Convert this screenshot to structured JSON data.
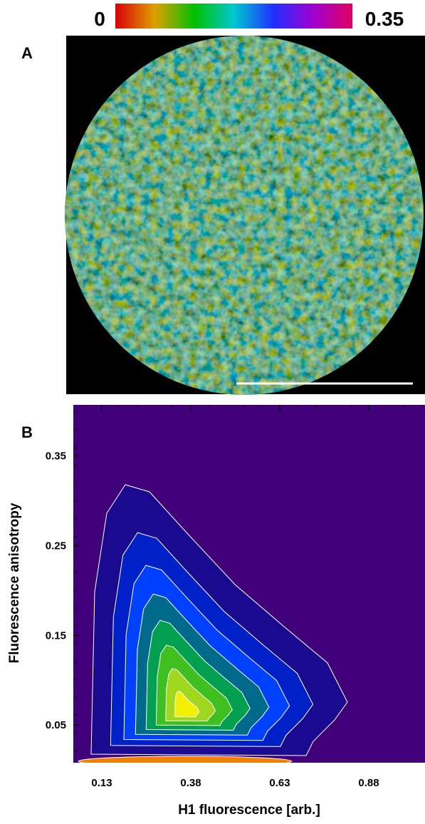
{
  "chart_data": [
    {
      "type": "image",
      "panel_label": "A",
      "colorbar_ticks": [
        0,
        0.35
      ],
      "colorbar_colors": [
        "#d8000a",
        "#e0a000",
        "#00c000",
        "#00c8d0",
        "#2030ff",
        "#a000d0",
        "#e00060"
      ]
    },
    {
      "type": "contour",
      "panel_label": "B",
      "xlabel": "H1 fluorescence [arb.]",
      "ylabel": "Fluorescence anisotropy",
      "xlim": [
        0.05,
        1.038
      ],
      "ylim": [
        0.008,
        0.407
      ],
      "xticks": [
        0.13,
        0.38,
        0.63,
        0.88
      ],
      "yticks": [
        0.05,
        0.15,
        0.25,
        0.35
      ],
      "colors": [
        "#40007a",
        "#1a0a90",
        "#0020c8",
        "#0040ff",
        "#006a8a",
        "#00a050",
        "#40c020",
        "#a0d820",
        "#f0f000"
      ]
    }
  ]
}
